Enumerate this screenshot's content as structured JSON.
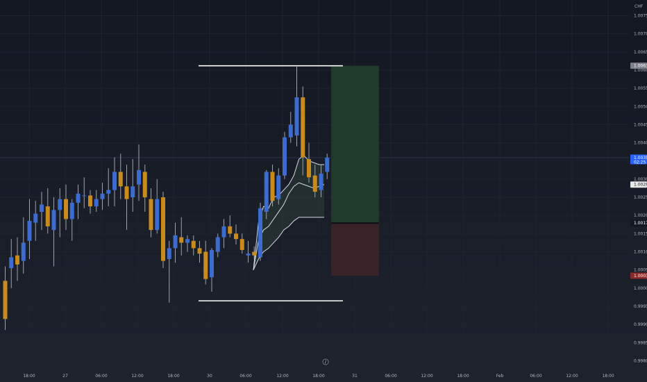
{
  "currency_label": "CHF",
  "colors": {
    "bg_top": "#131722",
    "bg_bottom": "#1e222d",
    "up": "#3c6cd0",
    "down": "#c88b1c",
    "wick": "#9ea3ad",
    "grid": "#1f2330",
    "crosshair": "#2a3551",
    "text": "#b2b5be",
    "profit_zone": "#1f3a2a",
    "loss_zone": "#3a2328",
    "band_line": "#d8dce4",
    "range_line": "#ffffff"
  },
  "price_axis": {
    "ticks": [
      "1.00750",
      "1.00700",
      "1.00650",
      "1.00600",
      "1.00550",
      "1.00500",
      "1.00450",
      "1.00400",
      "1.00350",
      "1.00300",
      "1.00250",
      "1.00200",
      "1.00150",
      "1.00100",
      "1.00050",
      "1.00000",
      "0.99950",
      "0.99900",
      "0.99850",
      "0.99800"
    ],
    "tags": [
      {
        "role": "target",
        "text": "1.00612",
        "bg": "#7d8089",
        "fg": "#ffffff"
      },
      {
        "role": "current",
        "text": "1.00359",
        "sub": "02:25",
        "bg": "#2962ff",
        "fg": "#ffffff"
      },
      {
        "role": "mid",
        "text": "1.00285",
        "bg": "#e8e8e8",
        "fg": "#131722"
      },
      {
        "role": "entry",
        "text": "1.00179",
        "bg": "#131722",
        "fg": "#ffffff"
      },
      {
        "role": "stop",
        "text": "1.00034",
        "bg": "#8a2b2b",
        "fg": "#ffffff"
      }
    ]
  },
  "time_axis": {
    "labels": [
      "18:00",
      "27",
      "06:00",
      "12:00",
      "18:00",
      "30",
      "06:00",
      "12:00",
      "18:00",
      "31",
      "06:00",
      "12:00",
      "18:00",
      "Feb",
      "06:00",
      "12:00",
      "18:00"
    ]
  },
  "chart_data": {
    "type": "candlestick",
    "symbol_currency": "CHF",
    "ylim": [
      0.99776,
      1.00793
    ],
    "candles": [
      {
        "o": 1.0002,
        "h": 1.0006,
        "l": 0.99885,
        "c": 0.99915
      },
      {
        "o": 1.00055,
        "h": 1.00135,
        "l": 1.0,
        "c": 1.00085
      },
      {
        "o": 1.0009,
        "h": 1.0014,
        "l": 1.0002,
        "c": 1.00065
      },
      {
        "o": 1.00075,
        "h": 1.00195,
        "l": 1.0004,
        "c": 1.00125
      },
      {
        "o": 1.0013,
        "h": 1.00245,
        "l": 1.0008,
        "c": 1.00185
      },
      {
        "o": 1.0018,
        "h": 1.0024,
        "l": 1.0013,
        "c": 1.00205
      },
      {
        "o": 1.0021,
        "h": 1.00265,
        "l": 1.0016,
        "c": 1.0023
      },
      {
        "o": 1.00225,
        "h": 1.00275,
        "l": 1.0015,
        "c": 1.0017
      },
      {
        "o": 1.0016,
        "h": 1.0025,
        "l": 1.0006,
        "c": 1.00215
      },
      {
        "o": 1.00215,
        "h": 1.00275,
        "l": 1.0014,
        "c": 1.00245
      },
      {
        "o": 1.00245,
        "h": 1.00285,
        "l": 1.0016,
        "c": 1.0019
      },
      {
        "o": 1.0019,
        "h": 1.00245,
        "l": 1.0013,
        "c": 1.00235
      },
      {
        "o": 1.00235,
        "h": 1.00285,
        "l": 1.0019,
        "c": 1.0026
      },
      {
        "o": 1.00255,
        "h": 1.00305,
        "l": 1.0022,
        "c": 1.00255
      },
      {
        "o": 1.00255,
        "h": 1.0027,
        "l": 1.00205,
        "c": 1.00225
      },
      {
        "o": 1.00225,
        "h": 1.0027,
        "l": 1.0021,
        "c": 1.00245
      },
      {
        "o": 1.00245,
        "h": 1.0029,
        "l": 1.00215,
        "c": 1.0026
      },
      {
        "o": 1.0026,
        "h": 1.0033,
        "l": 1.00225,
        "c": 1.0027
      },
      {
        "o": 1.0027,
        "h": 1.0036,
        "l": 1.00225,
        "c": 1.0032
      },
      {
        "o": 1.0032,
        "h": 1.0037,
        "l": 1.00245,
        "c": 1.0028
      },
      {
        "o": 1.0028,
        "h": 1.0034,
        "l": 1.0016,
        "c": 1.00245
      },
      {
        "o": 1.0025,
        "h": 1.00355,
        "l": 1.0021,
        "c": 1.0028
      },
      {
        "o": 1.00285,
        "h": 1.00395,
        "l": 1.0024,
        "c": 1.00325
      },
      {
        "o": 1.0032,
        "h": 1.0034,
        "l": 1.0021,
        "c": 1.0025
      },
      {
        "o": 1.00245,
        "h": 1.00275,
        "l": 1.0014,
        "c": 1.0016
      },
      {
        "o": 1.0016,
        "h": 1.003,
        "l": 1.0015,
        "c": 1.00245
      },
      {
        "o": 1.0025,
        "h": 1.00265,
        "l": 1.00055,
        "c": 1.00075
      },
      {
        "o": 1.0008,
        "h": 1.0013,
        "l": 0.9996,
        "c": 1.0011
      },
      {
        "o": 1.0011,
        "h": 1.0018,
        "l": 1.0007,
        "c": 1.00145
      },
      {
        "o": 1.0014,
        "h": 1.00195,
        "l": 1.0009,
        "c": 1.00125
      },
      {
        "o": 1.00125,
        "h": 1.00145,
        "l": 1.001,
        "c": 1.00135
      },
      {
        "o": 1.0013,
        "h": 1.00145,
        "l": 1.0009,
        "c": 1.0011
      },
      {
        "o": 1.0011,
        "h": 1.0013,
        "l": 1.0007,
        "c": 1.00095
      },
      {
        "o": 1.001,
        "h": 1.0013,
        "l": 1.0001,
        "c": 1.00025
      },
      {
        "o": 1.0003,
        "h": 1.0011,
        "l": 0.9999,
        "c": 1.00105
      },
      {
        "o": 1.001,
        "h": 1.0015,
        "l": 1.00085,
        "c": 1.0014
      },
      {
        "o": 1.0014,
        "h": 1.0019,
        "l": 1.0011,
        "c": 1.0017
      },
      {
        "o": 1.0017,
        "h": 1.002,
        "l": 1.0014,
        "c": 1.0015
      },
      {
        "o": 1.0015,
        "h": 1.00175,
        "l": 1.0012,
        "c": 1.00135
      },
      {
        "o": 1.00135,
        "h": 1.0015,
        "l": 1.00095,
        "c": 1.00105
      },
      {
        "o": 1.0009,
        "h": 1.0013,
        "l": 1.0007,
        "c": 1.00095
      },
      {
        "o": 1.001,
        "h": 1.00115,
        "l": 1.0008,
        "c": 1.0009
      },
      {
        "o": 1.00085,
        "h": 1.00235,
        "l": 1.00075,
        "c": 1.0022
      },
      {
        "o": 1.0021,
        "h": 1.00325,
        "l": 1.0019,
        "c": 1.0032
      },
      {
        "o": 1.0032,
        "h": 1.0034,
        "l": 1.00225,
        "c": 1.0024
      },
      {
        "o": 1.00245,
        "h": 1.0033,
        "l": 1.0023,
        "c": 1.0031
      },
      {
        "o": 1.0031,
        "h": 1.0043,
        "l": 1.003,
        "c": 1.00415
      },
      {
        "o": 1.00415,
        "h": 1.00485,
        "l": 1.004,
        "c": 1.0045
      },
      {
        "o": 1.0042,
        "h": 1.00612,
        "l": 1.0039,
        "c": 1.00525
      },
      {
        "o": 1.00525,
        "h": 1.00555,
        "l": 1.0031,
        "c": 1.0036
      },
      {
        "o": 1.00355,
        "h": 1.004,
        "l": 1.0029,
        "c": 1.00305
      },
      {
        "o": 1.0031,
        "h": 1.0034,
        "l": 1.0025,
        "c": 1.00265
      },
      {
        "o": 1.0027,
        "h": 1.0034,
        "l": 1.0025,
        "c": 1.00315
      },
      {
        "o": 1.0032,
        "h": 1.0037,
        "l": 1.003,
        "c": 1.00359
      }
    ],
    "bands": {
      "upper": [
        1.0005,
        1.0018,
        1.00225,
        1.0022,
        1.0025,
        1.00255,
        1.0027,
        1.00285,
        1.0031,
        1.00355,
        1.00365,
        1.0035,
        1.00345,
        1.0034,
        1.0034
      ],
      "middle": [
        1.0005,
        1.0013,
        1.0016,
        1.0017,
        1.0019,
        1.0021,
        1.0023,
        1.0026,
        1.0028,
        1.0029,
        1.00285,
        1.0028,
        1.00275,
        1.0028,
        1.00285
      ],
      "lower": [
        1.0005,
        1.0008,
        1.001,
        1.0011,
        1.00125,
        1.0014,
        1.0016,
        1.0017,
        1.00185,
        1.00195,
        1.00195,
        1.00195,
        1.00195,
        1.00195,
        1.00195
      ]
    },
    "range_high": 1.00612,
    "range_low": 0.99965,
    "position": {
      "target": 1.00612,
      "entry": 1.00179,
      "stop": 1.00034
    },
    "current_price": 1.00359
  }
}
